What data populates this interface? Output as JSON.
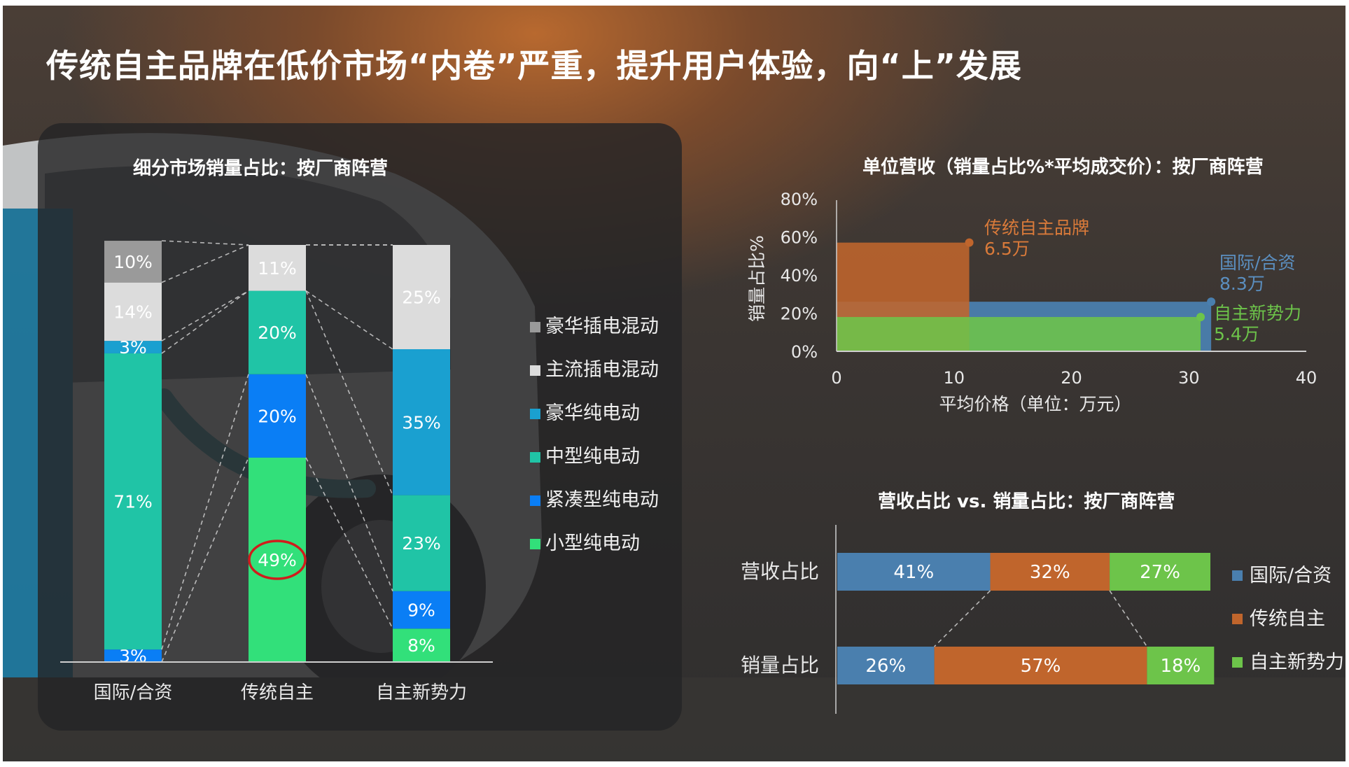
{
  "title": "传统自主品牌在低价市场“内卷”严重，提升用户体验，向“上”发展",
  "colors": {
    "international": "#4a7fae",
    "traditional": "#c0652c",
    "new_forces": "#6dc44a",
    "luxury_phev": "#9a9a9a",
    "mainstream_phev": "#dcdcdc",
    "luxury_bev": "#1aa0d0",
    "midsize_bev": "#20c4a6",
    "compact_bev": "#0a7ef5",
    "small_bev": "#32e07a"
  },
  "chart_data": [
    {
      "type": "bar",
      "stacked": true,
      "title": "细分市场销量占比：按厂商阵营",
      "categories": [
        "国际/合资",
        "传统自主",
        "自主新势力"
      ],
      "series": [
        {
          "name": "小型纯电动",
          "values": [
            0,
            49,
            8
          ],
          "labels": [
            "",
            "49%",
            "8%"
          ],
          "color_key": "small_bev"
        },
        {
          "name": "紧凑型纯电动",
          "values": [
            3,
            20,
            9
          ],
          "labels": [
            "3%",
            "20%",
            "9%"
          ],
          "color_key": "compact_bev"
        },
        {
          "name": "中型纯电动",
          "values": [
            71,
            20,
            23
          ],
          "labels": [
            "71%",
            "20%",
            "23%"
          ],
          "color_key": "midsize_bev"
        },
        {
          "name": "豪华纯电动",
          "values": [
            3,
            0,
            35
          ],
          "labels": [
            "3%",
            "",
            "35%"
          ],
          "color_key": "luxury_bev"
        },
        {
          "name": "主流插电混动",
          "values": [
            14,
            11,
            25
          ],
          "labels": [
            "14%",
            "11%",
            "25%"
          ],
          "color_key": "mainstream_phev"
        },
        {
          "name": "豪华插电混动",
          "values": [
            10,
            0,
            0
          ],
          "labels": [
            "10%",
            "",
            ""
          ],
          "color_key": "luxury_phev"
        }
      ],
      "legend_order": [
        "豪华插电混动",
        "主流插电混动",
        "豪华纯电动",
        "中型纯电动",
        "紧凑型纯电动",
        "小型纯电动"
      ],
      "highlight": {
        "category": "传统自主",
        "series": "小型纯电动"
      },
      "ylim": [
        0,
        100
      ],
      "legend": "right"
    },
    {
      "type": "area",
      "title": "单位营收（销量占比%*平均成交价）：按厂商阵营",
      "xlabel": "平均价格（单位：万元）",
      "ylabel": "销量占比%",
      "xlim": [
        0,
        40
      ],
      "ylim": [
        0,
        80
      ],
      "xticks": [
        0,
        10,
        20,
        30,
        40
      ],
      "yticks": [
        0,
        20,
        40,
        60,
        80
      ],
      "ytick_labels": [
        "0%",
        "20%",
        "40%",
        "60%",
        "80%"
      ],
      "series": [
        {
          "name": "传统自主品牌",
          "value_label": "6.5万",
          "x": 11.3,
          "y": 57,
          "color_key": "traditional"
        },
        {
          "name": "国际/合资",
          "value_label": "8.3万",
          "x": 31.9,
          "y": 26,
          "color_key": "international"
        },
        {
          "name": "自主新势力",
          "value_label": "5.4万",
          "x": 31.0,
          "y": 18,
          "color_key": "new_forces"
        }
      ]
    },
    {
      "type": "bar",
      "stacked": true,
      "orientation": "horizontal",
      "percent": true,
      "title": "营收占比 vs. 销量占比：按厂商阵营",
      "categories": [
        "营收占比",
        "销量占比"
      ],
      "series": [
        {
          "name": "国际/合资",
          "values": [
            41,
            26
          ],
          "labels": [
            "41%",
            "26%"
          ],
          "color_key": "international"
        },
        {
          "name": "传统自主",
          "values": [
            32,
            57
          ],
          "labels": [
            "32%",
            "57%"
          ],
          "color_key": "traditional"
        },
        {
          "name": "自主新势力",
          "values": [
            27,
            18
          ],
          "labels": [
            "27%",
            "18%"
          ],
          "color_key": "new_forces"
        }
      ],
      "legend": "right"
    }
  ]
}
